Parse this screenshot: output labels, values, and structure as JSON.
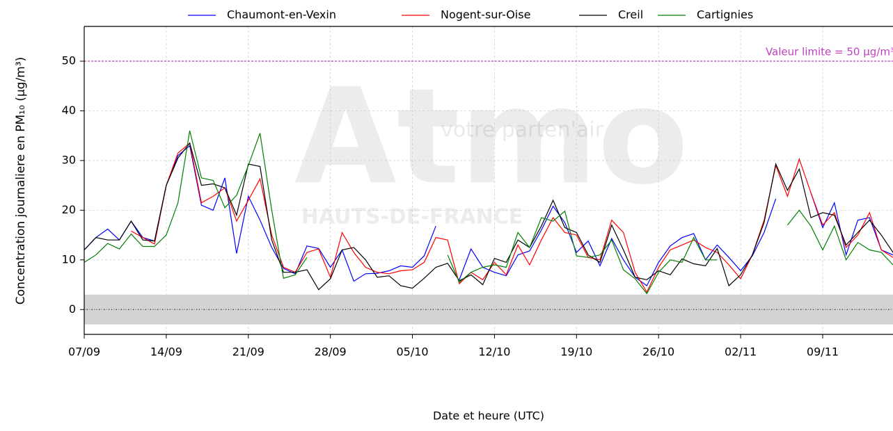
{
  "chart_data": {
    "type": "line",
    "xlabel": "Date et heure (UTC)",
    "ylabel": "Concentration journaliere en PM₁₀ (µg/m³)",
    "categories": [
      "07/09",
      null,
      null,
      null,
      null,
      null,
      null,
      "14/09",
      null,
      null,
      null,
      null,
      null,
      null,
      "21/09",
      null,
      null,
      null,
      null,
      null,
      null,
      "28/09",
      null,
      null,
      null,
      null,
      null,
      null,
      "05/10",
      null,
      null,
      null,
      null,
      null,
      null,
      "12/10",
      null,
      null,
      null,
      null,
      null,
      null,
      "19/10",
      null,
      null,
      null,
      null,
      null,
      null,
      "26/10",
      null,
      null,
      null,
      null,
      null,
      null,
      "02/11",
      null,
      null,
      null,
      null,
      null,
      null,
      "09/11",
      null,
      null,
      null,
      null,
      null,
      null
    ],
    "series": [
      {
        "name": "Chaumont-en-Vexin",
        "color": "#0000ff",
        "values": [
          12,
          14.5,
          16.2,
          14,
          17.8,
          14.5,
          13.8,
          25,
          31,
          33,
          21,
          20,
          26.5,
          11.3,
          22.8,
          18,
          12.5,
          8.3,
          7.2,
          12.8,
          12.3,
          8.5,
          12,
          5.7,
          7.2,
          7.3,
          7.8,
          8.8,
          8.5,
          10.8,
          16.8,
          null,
          6,
          12.2,
          8.5,
          7.5,
          6.8,
          11,
          11.8,
          16,
          20.8,
          17.5,
          11.5,
          13.8,
          8.8,
          14.3,
          10,
          6.5,
          4.8,
          9.5,
          12.8,
          14.5,
          15.3,
          10,
          13,
          10.5,
          7.8,
          10.8,
          15.5,
          22.3,
          null,
          null,
          23.5,
          16.5,
          21.5,
          11,
          18,
          18.5,
          12,
          11
        ]
      },
      {
        "name": "Nogent-sur-Oise",
        "color": "#ff0000",
        "values": [
          null,
          null,
          null,
          null,
          15.8,
          14.5,
          13.2,
          25,
          31.5,
          33.5,
          21.5,
          22.8,
          24.5,
          17.8,
          22,
          26.3,
          15,
          8.5,
          7.5,
          11.5,
          12.2,
          6.5,
          15.5,
          11.5,
          8.5,
          7.5,
          7.2,
          7.8,
          8,
          9.5,
          14.5,
          14,
          5.2,
          7.5,
          6,
          9.5,
          7,
          13,
          9,
          14,
          18.5,
          15.5,
          15,
          10.5,
          10,
          18,
          15.5,
          7.5,
          3.5,
          8.5,
          12,
          13,
          14,
          12.5,
          11.5,
          9,
          6.2,
          11,
          18,
          29,
          22.8,
          30.3,
          23.5,
          17,
          19.5,
          12.5,
          15,
          19.5,
          12,
          10.5
        ]
      },
      {
        "name": "Creil",
        "color": "#000000",
        "values": [
          12,
          14.5,
          14,
          14,
          17.8,
          14,
          13.8,
          25,
          30.5,
          33.5,
          25,
          25.3,
          24.5,
          19,
          29.3,
          28.8,
          14,
          7.5,
          7.5,
          8,
          4,
          6.2,
          12,
          12.5,
          10,
          6.5,
          6.8,
          4.8,
          4.3,
          6.3,
          8.5,
          9.3,
          5.8,
          7,
          5,
          10.3,
          9.5,
          14,
          12.5,
          16.8,
          22,
          16.5,
          15.5,
          11,
          9.5,
          17,
          12,
          6.5,
          6,
          7.8,
          7,
          10.2,
          9.2,
          8.8,
          12.3,
          4.8,
          7,
          11,
          17.5,
          29.3,
          24,
          28.3,
          18.5,
          19.5,
          19,
          13,
          15.5,
          18,
          15,
          11.5
        ]
      },
      {
        "name": "Cartignies",
        "color": "#008000",
        "values": [
          9.5,
          11,
          13.3,
          12.2,
          15.2,
          12.7,
          12.7,
          15,
          21.5,
          36,
          26.5,
          26,
          20.5,
          23,
          29,
          35.5,
          20,
          6.3,
          7,
          10.5,
          null,
          null,
          null,
          null,
          null,
          null,
          null,
          null,
          null,
          null,
          null,
          11,
          5.5,
          7.5,
          8.5,
          9,
          8.5,
          15.5,
          12.5,
          18.5,
          17.8,
          19.8,
          10.8,
          10.5,
          11,
          14,
          8,
          6.2,
          3.2,
          7.5,
          10,
          9.5,
          14.5,
          10,
          10,
          null,
          null,
          null,
          null,
          null,
          17,
          20,
          16.8,
          12,
          16.8,
          10,
          13.5,
          12,
          11.5,
          9
        ]
      }
    ],
    "ylim": [
      -5,
      57
    ],
    "yticks": [
      0,
      10,
      20,
      30,
      40,
      50
    ],
    "grid": true,
    "legend": "top",
    "band": [
      -3,
      3
    ],
    "annotation": {
      "text": "Valeur limite = 50 µg/m³",
      "value": 50,
      "color": "#bf40bf"
    },
    "watermark": [
      "votre parten'air",
      "Atmo",
      "HAUTS-DE-FRANCE"
    ]
  }
}
